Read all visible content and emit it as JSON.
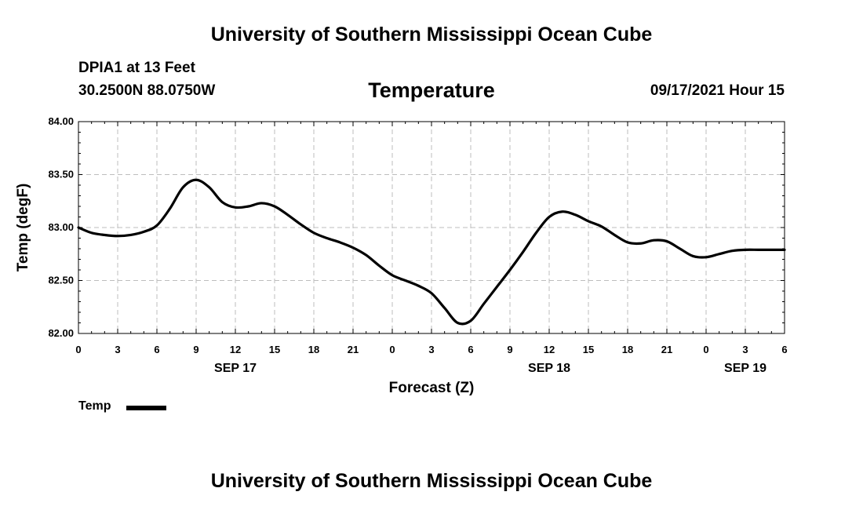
{
  "header": {
    "title": "University of Southern Mississippi Ocean Cube",
    "station": "DPIA1 at 13 Feet",
    "coords": "30.2500N  88.0750W",
    "datetime": "09/17/2021 Hour 15",
    "footer_title": "University of Southern Mississippi Ocean Cube"
  },
  "chart_data": {
    "type": "line",
    "title": "Temperature",
    "xlabel": "Forecast (Z)",
    "ylabel": "Temp (degF)",
    "ylim": [
      82.0,
      84.0
    ],
    "xlim": [
      0,
      54
    ],
    "yticks": [
      "82.00",
      "82.50",
      "83.00",
      "83.50",
      "84.00"
    ],
    "xticks": [
      "0",
      "3",
      "6",
      "9",
      "12",
      "15",
      "18",
      "21",
      "0",
      "3",
      "6",
      "9",
      "12",
      "15",
      "18",
      "21",
      "0",
      "3",
      "6"
    ],
    "date_labels": [
      {
        "label": "SEP 17",
        "hour": 12
      },
      {
        "label": "SEP 18",
        "hour": 36
      },
      {
        "label": "SEP 19",
        "hour": 51
      }
    ],
    "grid": true,
    "legend_position": "bottom-left",
    "series": [
      {
        "name": "Temp",
        "color": "#000000",
        "x": [
          0,
          1,
          2,
          3,
          4,
          5,
          6,
          7,
          8,
          9,
          10,
          11,
          12,
          13,
          14,
          15,
          16,
          17,
          18,
          19,
          20,
          21,
          22,
          23,
          24,
          25,
          26,
          27,
          28,
          29,
          30,
          31,
          32,
          33,
          34,
          35,
          36,
          37,
          38,
          39,
          40,
          41,
          42,
          43,
          44,
          45,
          46,
          47,
          48,
          49,
          50,
          51,
          52,
          53,
          54
        ],
        "y": [
          83.0,
          82.95,
          82.93,
          82.92,
          82.93,
          82.96,
          83.02,
          83.18,
          83.38,
          83.45,
          83.38,
          83.24,
          83.19,
          83.2,
          83.23,
          83.2,
          83.12,
          83.03,
          82.95,
          82.9,
          82.86,
          82.81,
          82.74,
          82.64,
          82.55,
          82.5,
          82.45,
          82.38,
          82.24,
          82.1,
          82.12,
          82.28,
          82.44,
          82.6,
          82.77,
          82.95,
          83.1,
          83.15,
          83.12,
          83.06,
          83.01,
          82.93,
          82.86,
          82.85,
          82.88,
          82.87,
          82.8,
          82.73,
          82.72,
          82.75,
          82.78,
          82.79,
          82.79,
          82.79,
          82.79
        ]
      }
    ]
  }
}
